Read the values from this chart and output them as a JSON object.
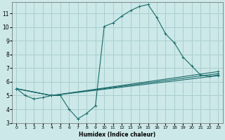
{
  "xlabel": "Humidex (Indice chaleur)",
  "bg_color": "#cce8e8",
  "grid_color": "#aacece",
  "line_color": "#1a6b6b",
  "xlim": [
    -0.5,
    23.5
  ],
  "ylim": [
    3,
    11.8
  ],
  "xticks": [
    0,
    1,
    2,
    3,
    4,
    5,
    6,
    7,
    8,
    9,
    10,
    11,
    12,
    13,
    14,
    15,
    16,
    17,
    18,
    19,
    20,
    21,
    22,
    23
  ],
  "yticks": [
    3,
    4,
    5,
    6,
    7,
    8,
    9,
    10,
    11
  ],
  "curve1_x": [
    0,
    1,
    2,
    3,
    4,
    5,
    6,
    7,
    8,
    9,
    10,
    11,
    12,
    13,
    14,
    15,
    16,
    17,
    18,
    19,
    20,
    21,
    22,
    23
  ],
  "curve1_y": [
    5.5,
    5.0,
    4.75,
    4.85,
    5.0,
    5.0,
    4.0,
    3.3,
    3.7,
    4.25,
    10.05,
    10.3,
    10.8,
    11.2,
    11.5,
    11.65,
    10.7,
    9.5,
    8.85,
    7.8,
    7.15,
    6.5,
    6.4,
    6.5
  ],
  "line2_x": [
    0,
    4,
    23
  ],
  "line2_y": [
    5.5,
    5.0,
    6.45
  ],
  "line3_x": [
    0,
    4,
    23
  ],
  "line3_y": [
    5.5,
    5.0,
    6.6
  ],
  "line4_x": [
    0,
    4,
    23
  ],
  "line4_y": [
    5.5,
    5.0,
    6.75
  ]
}
